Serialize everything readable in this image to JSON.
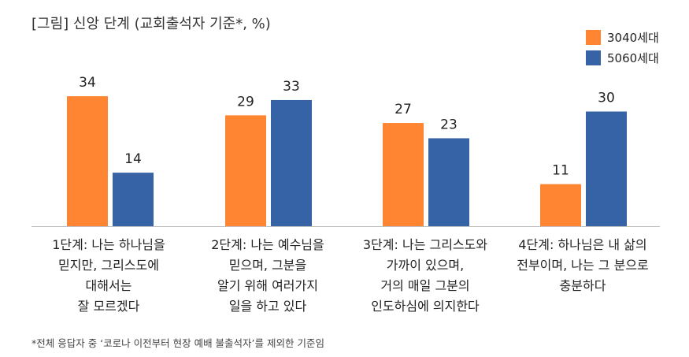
{
  "title": "[그림] 신앙 단계 (교회출석자 기준*, %)",
  "footnote": "*전체 응답자 중 ‘코로나 이전부터 현장 예배 불출석자’를 제외한 기준임",
  "colors": {
    "series_3040": "#FF8533",
    "series_5060": "#3563A6"
  },
  "chart_data": {
    "type": "bar",
    "title": "[그림] 신앙 단계 (교회출석자 기준*, %)",
    "categories": [
      "1단계: 나는 하나님을\n믿지만, 그리스도에\n대해서는\n잘 모르겠다",
      "2단계: 나는 예수님을\n믿으며, 그분을\n알기 위해 여러가지\n일을 하고 있다",
      "3단계: 나는 그리스도와\n가까이 있으며,\n거의 매일 그분의\n인도하심에 의지한다",
      "4단계: 하나님은 내 삶의\n전부이며, 나는 그 분으로\n충분하다"
    ],
    "series": [
      {
        "name": "3040세대",
        "values": [
          34,
          29,
          27,
          11
        ]
      },
      {
        "name": "5060세대",
        "values": [
          14,
          33,
          23,
          30
        ]
      }
    ],
    "ylim": [
      0,
      40
    ],
    "grid": false,
    "legend": "top-right",
    "xlabel": "",
    "ylabel": ""
  }
}
